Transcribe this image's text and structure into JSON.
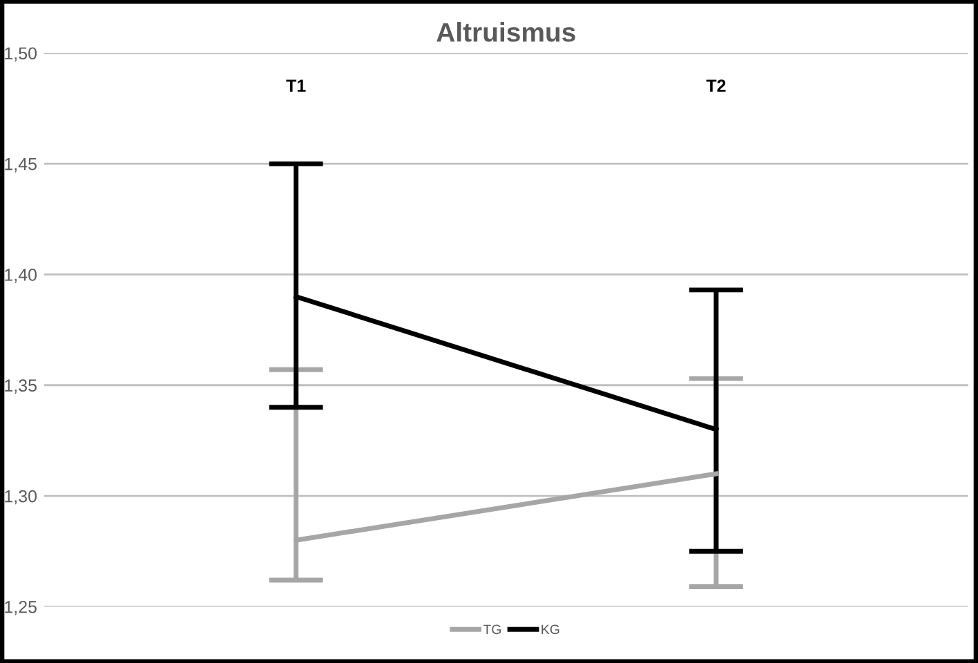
{
  "chart_data": {
    "type": "line",
    "title": "Altruismus",
    "categories": [
      "T1",
      "T2"
    ],
    "series": [
      {
        "name": "TG",
        "color": "#a6a6a6",
        "values": [
          1.28,
          1.31
        ],
        "errors": [
          [
            1.262,
            1.357
          ],
          [
            1.259,
            1.353
          ]
        ]
      },
      {
        "name": "KG",
        "color": "#000000",
        "values": [
          1.39,
          1.33
        ],
        "errors": [
          [
            1.34,
            1.45
          ],
          [
            1.275,
            1.393
          ]
        ]
      }
    ],
    "ylim": [
      1.25,
      1.5
    ],
    "yticks": [
      {
        "value": 1.25,
        "label": "1,25"
      },
      {
        "value": 1.3,
        "label": "1,30"
      },
      {
        "value": 1.35,
        "label": "1,35"
      },
      {
        "value": 1.4,
        "label": "1,40"
      },
      {
        "value": 1.45,
        "label": "1,45"
      },
      {
        "value": 1.5,
        "label": "1,50"
      }
    ],
    "grid": "y",
    "legend": "bottom",
    "marker": "none",
    "line_style": "solid"
  }
}
